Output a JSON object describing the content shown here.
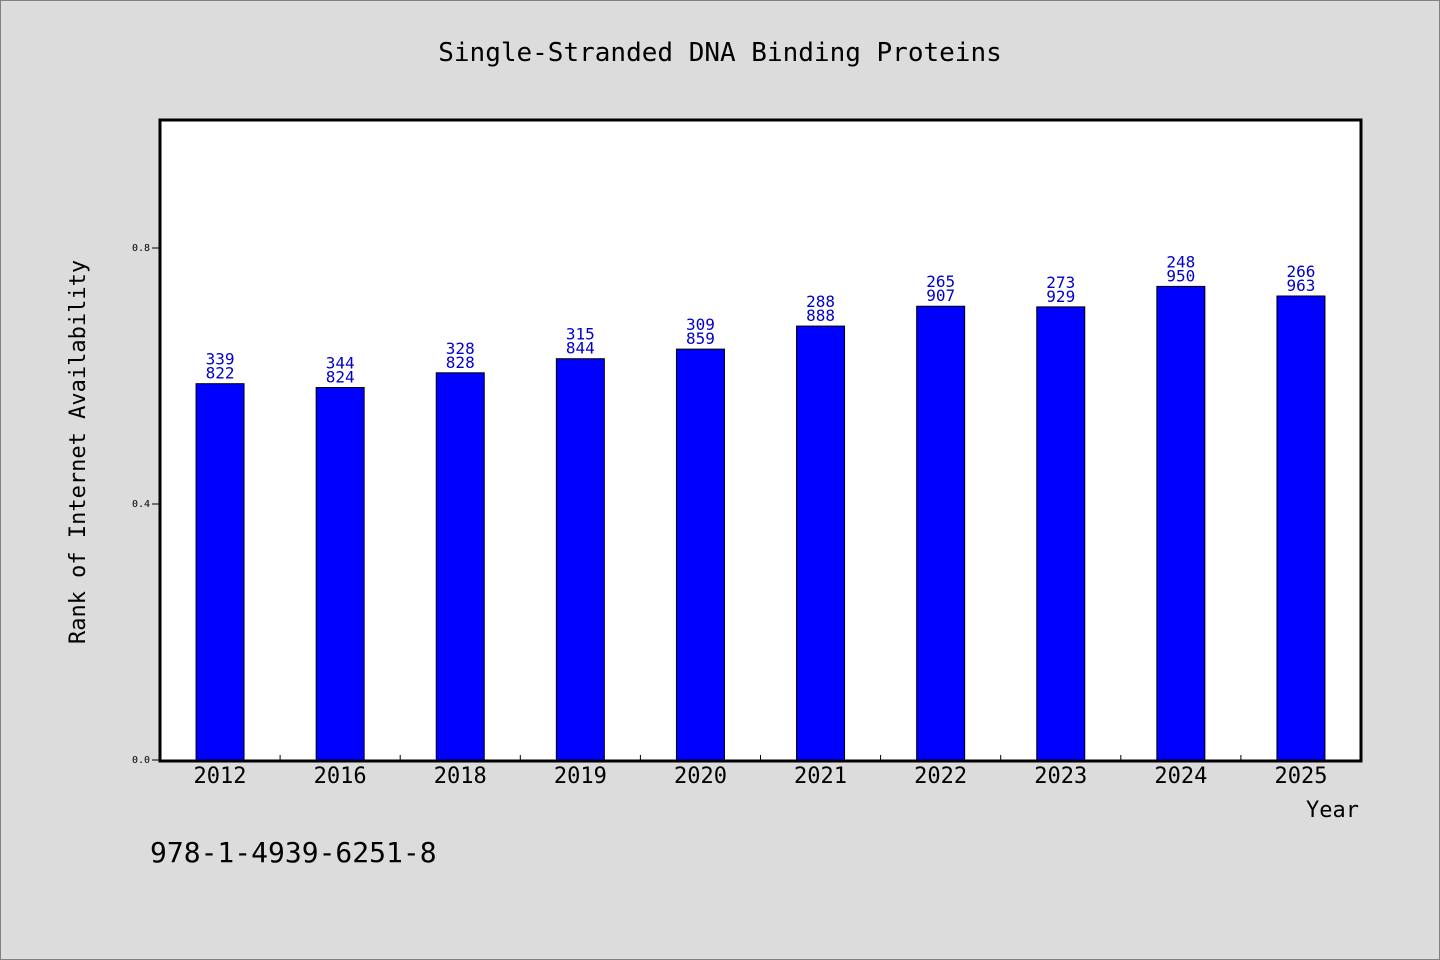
{
  "chart_data": {
    "type": "bar",
    "title": "Single-Stranded DNA Binding Proteins",
    "xlabel": "Year",
    "ylabel": "Rank of Internet Availability",
    "categories": [
      "2012",
      "2016",
      "2018",
      "2019",
      "2020",
      "2021",
      "2022",
      "2023",
      "2024",
      "2025"
    ],
    "values": [
      0.588,
      0.582,
      0.605,
      0.627,
      0.642,
      0.678,
      0.709,
      0.708,
      0.74,
      0.725
    ],
    "label_top": [
      "339",
      "344",
      "328",
      "315",
      "309",
      "288",
      "265",
      "273",
      "248",
      "266"
    ],
    "label_bottom": [
      "822",
      "824",
      "828",
      "844",
      "859",
      "888",
      "907",
      "929",
      "950",
      "963"
    ],
    "ylim": [
      0,
      1.0
    ],
    "yticks": [
      0.0,
      0.4,
      0.8
    ],
    "ytick_labels": [
      "0.0",
      "0.4",
      "0.8"
    ],
    "grid": false,
    "bar_color": "#0000ff",
    "label_color": "#0000cc"
  },
  "footnote": "978-1-4939-6251-8"
}
